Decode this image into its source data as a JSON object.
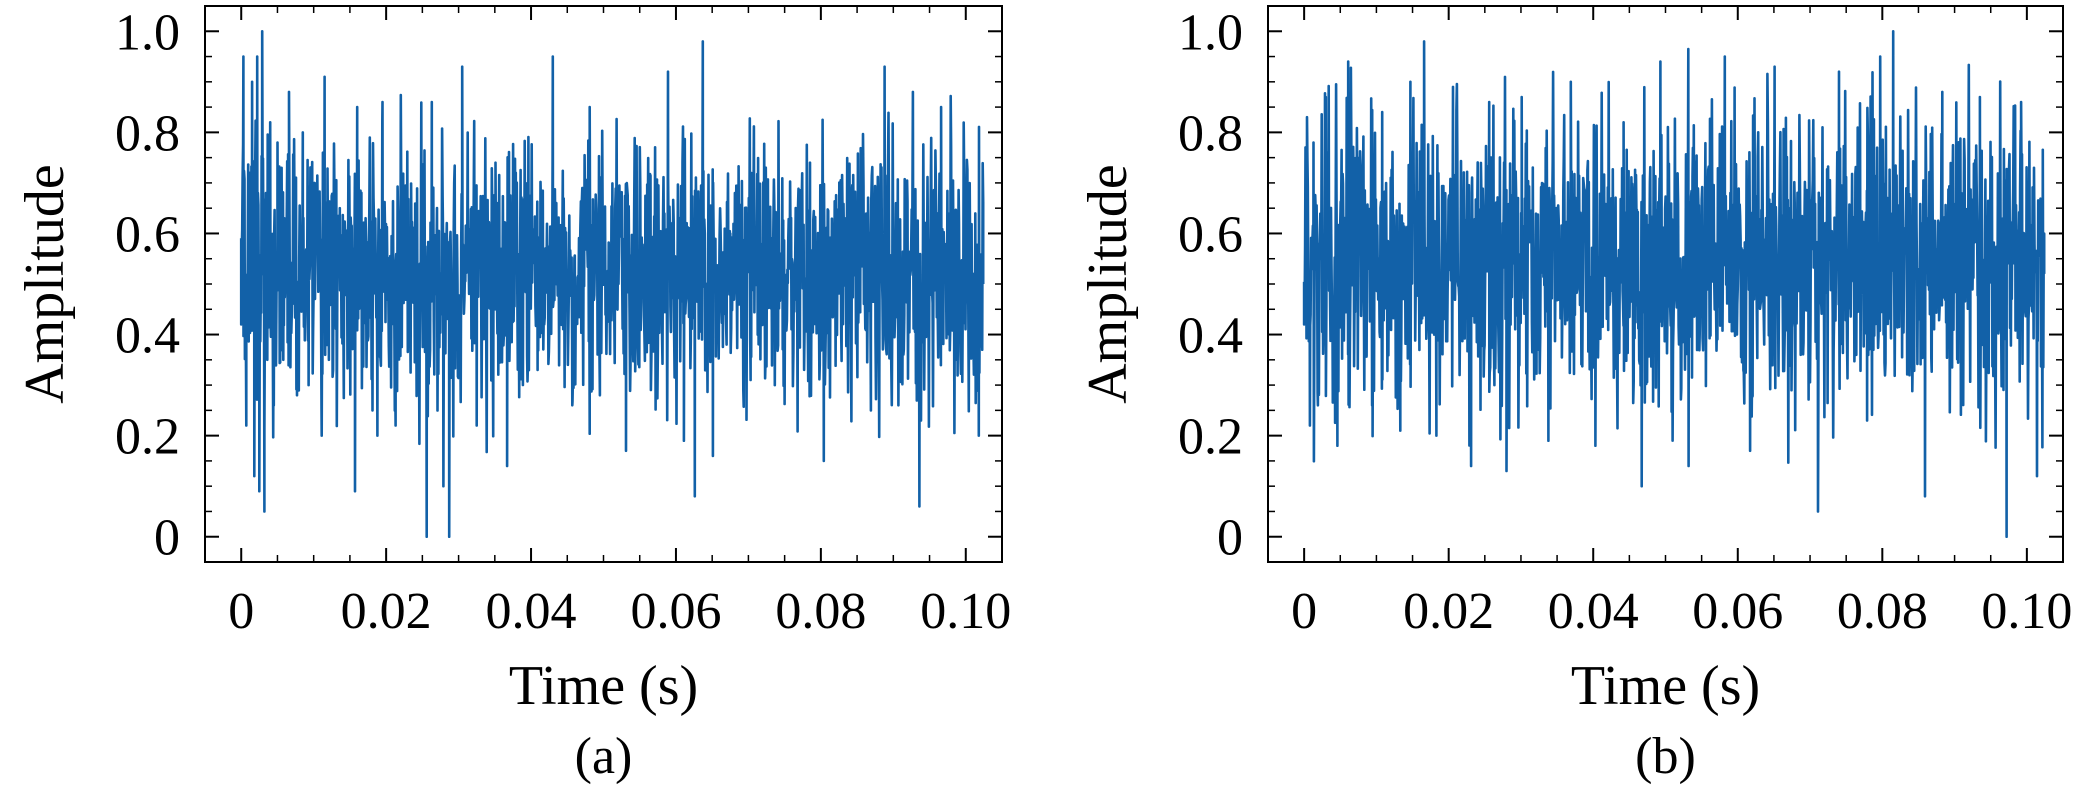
{
  "figure": {
    "panels": [
      {
        "caption": "(a)"
      },
      {
        "caption": "(b)"
      }
    ]
  },
  "chart_data": [
    {
      "type": "line",
      "panel": "(a)",
      "title": "",
      "xlabel": "Time (s)",
      "ylabel": "Amplitude",
      "xlim": [
        -0.005,
        0.105
      ],
      "ylim": [
        -0.05,
        1.05
      ],
      "xticks": [
        0,
        0.02,
        0.04,
        0.06,
        0.08,
        0.1
      ],
      "xtick_labels": [
        "0",
        "0.02",
        "0.04",
        "0.06",
        "0.08",
        "0.10"
      ],
      "yticks": [
        0,
        0.2,
        0.4,
        0.6,
        0.8,
        1.0
      ],
      "ytick_labels": [
        "0",
        "0.2",
        "0.4",
        "0.6",
        "0.8",
        "1.0"
      ],
      "grid": false,
      "series_color": "#1261a8",
      "signal": {
        "t_start": 0,
        "t_end": 0.1024,
        "mean": 0.52,
        "spread": 0.13,
        "min": 0.0,
        "max": 1.0
      },
      "series": [
        {
          "x": [
            0,
            0.0003,
            0.0007,
            0.0012,
            0.0015,
            0.0018,
            0.0022,
            0.0025,
            0.0029,
            0.0032,
            0.0034,
            0.0036,
            0.004,
            0.0045,
            0.005,
            0.0058,
            0.0066,
            0.0077,
            0.0085,
            0.0093,
            0.0101,
            0.0111,
            0.0115,
            0.0121,
            0.0136,
            0.0157,
            0.016,
            0.0188,
            0.0195,
            0.0213,
            0.0245,
            0.0256,
            0.0263,
            0.0279,
            0.0287,
            0.0305,
            0.0325,
            0.0351,
            0.0367,
            0.0379,
            0.0409,
            0.043,
            0.0457,
            0.0481,
            0.0495,
            0.0531,
            0.0547,
            0.0589,
            0.0611,
            0.0626,
            0.0637,
            0.0651,
            0.0675,
            0.0703,
            0.0724,
            0.0785,
            0.0804,
            0.0869,
            0.0888,
            0.0907,
            0.0927,
            0.0936,
            0.0966,
            0.0977,
            0.0998,
            0.1018,
            0.1024
          ],
          "y": [
            0.42,
            0.95,
            0.22,
            0.72,
            0.9,
            0.12,
            0.95,
            0.09,
            1.0,
            0.05,
            0.68,
            0.35,
            0.82,
            0.26,
            0.78,
            0.35,
            0.88,
            0.28,
            0.8,
            0.3,
            0.7,
            0.2,
            0.91,
            0.35,
            0.65,
            0.09,
            0.85,
            0.2,
            0.86,
            0.22,
            0.4,
            0.0,
            0.86,
            0.1,
            0.0,
            0.93,
            0.22,
            0.74,
            0.14,
            0.72,
            0.33,
            0.95,
            0.26,
            0.85,
            0.28,
            0.17,
            0.38,
            0.92,
            0.19,
            0.08,
            0.98,
            0.16,
            0.6,
            0.31,
            0.73,
            0.74,
            0.15,
            0.25,
            0.93,
            0.26,
            0.88,
            0.06,
            0.85,
            0.4,
            0.7,
            0.2,
            0.5
          ]
        }
      ]
    },
    {
      "type": "line",
      "panel": "(b)",
      "title": "",
      "xlabel": "Time (s)",
      "ylabel": "Amplitude",
      "xlim": [
        -0.005,
        0.105
      ],
      "ylim": [
        -0.05,
        1.05
      ],
      "xticks": [
        0,
        0.02,
        0.04,
        0.06,
        0.08,
        0.1
      ],
      "xtick_labels": [
        "0",
        "0.02",
        "0.04",
        "0.06",
        "0.08",
        "0.10"
      ],
      "yticks": [
        0,
        0.2,
        0.4,
        0.6,
        0.8,
        1.0
      ],
      "ytick_labels": [
        "0",
        "0.2",
        "0.4",
        "0.6",
        "0.8",
        "1.0"
      ],
      "grid": false,
      "series_color": "#1261a8",
      "signal": {
        "t_start": 0,
        "t_end": 0.1024,
        "mean": 0.55,
        "spread": 0.15,
        "min": 0.0,
        "max": 1.0
      },
      "series": [
        {
          "x": [
            0,
            0.0004,
            0.0008,
            0.0013,
            0.0019,
            0.003,
            0.0046,
            0.0061,
            0.0094,
            0.0108,
            0.0133,
            0.0147,
            0.0166,
            0.0183,
            0.0206,
            0.0231,
            0.0256,
            0.028,
            0.0301,
            0.0338,
            0.0369,
            0.0403,
            0.0442,
            0.0467,
            0.0493,
            0.0532,
            0.0582,
            0.0617,
            0.0651,
            0.0687,
            0.0711,
            0.074,
            0.0779,
            0.0797,
            0.0815,
            0.0859,
            0.0883,
            0.0911,
            0.0935,
            0.0972,
            0.0992,
            0.1014,
            0.1024
          ],
          "y": [
            0.42,
            0.83,
            0.22,
            0.78,
            0.26,
            0.87,
            0.18,
            0.94,
            0.26,
            0.84,
            0.21,
            0.9,
            0.98,
            0.2,
            0.89,
            0.14,
            0.86,
            0.13,
            0.87,
            0.19,
            0.9,
            0.18,
            0.82,
            0.1,
            0.94,
            0.14,
            0.95,
            0.17,
            0.93,
            0.36,
            0.05,
            0.92,
            0.23,
            0.95,
            1.0,
            0.08,
            0.88,
            0.27,
            0.87,
            0.0,
            0.86,
            0.12,
            0.52
          ]
        }
      ]
    }
  ]
}
